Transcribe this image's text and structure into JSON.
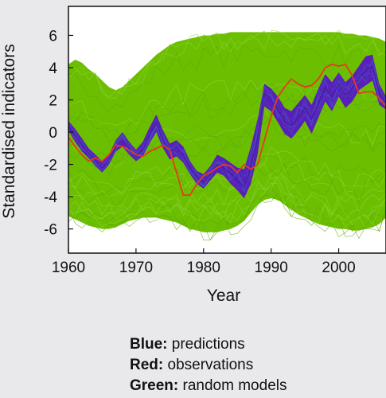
{
  "chart_data": {
    "type": "line",
    "xlabel": "Year",
    "ylabel": "Standardised indicators",
    "xlim": [
      1960,
      2007
    ],
    "ylim": [
      -7.5,
      7.8
    ],
    "xticks": [
      1960,
      1970,
      1980,
      1990,
      2000
    ],
    "yticks": [
      -6,
      -4,
      -2,
      0,
      2,
      4,
      6
    ],
    "x": [
      1960,
      1961,
      1962,
      1963,
      1964,
      1965,
      1966,
      1967,
      1968,
      1969,
      1970,
      1971,
      1972,
      1973,
      1974,
      1975,
      1976,
      1977,
      1978,
      1979,
      1980,
      1981,
      1982,
      1983,
      1984,
      1985,
      1986,
      1987,
      1988,
      1989,
      1990,
      1991,
      1992,
      1993,
      1994,
      1995,
      1996,
      1997,
      1998,
      1999,
      2000,
      2001,
      2002,
      2003,
      2004,
      2005,
      2006,
      2007
    ],
    "series": [
      {
        "name": "Green",
        "color": "#6cbf00",
        "band_upper": [
          4.2,
          4.5,
          4.3,
          3.9,
          3.6,
          3.2,
          2.8,
          2.6,
          2.8,
          3.2,
          3.6,
          4.0,
          4.4,
          4.8,
          5.1,
          5.4,
          5.6,
          5.7,
          5.8,
          5.9,
          6.0,
          6.0,
          6.1,
          6.1,
          6.2,
          6.2,
          6.2,
          6.2,
          6.2,
          6.2,
          6.2,
          6.2,
          6.2,
          6.2,
          6.2,
          6.2,
          6.2,
          6.2,
          6.2,
          6.2,
          6.2,
          6.1,
          6.1,
          6.0,
          6.0,
          5.9,
          5.8,
          5.6
        ],
        "band_lower": [
          -5.2,
          -5.4,
          -5.6,
          -5.8,
          -5.9,
          -6.0,
          -6.0,
          -5.9,
          -5.7,
          -5.5,
          -5.4,
          -5.3,
          -5.3,
          -5.3,
          -5.4,
          -5.5,
          -5.6,
          -5.8,
          -6.0,
          -6.1,
          -6.2,
          -6.2,
          -6.2,
          -6.1,
          -6.0,
          -5.8,
          -5.5,
          -5.0,
          -4.5,
          -4.2,
          -4.1,
          -4.2,
          -4.5,
          -4.8,
          -5.1,
          -5.3,
          -5.5,
          -5.7,
          -5.8,
          -5.9,
          -6.0,
          -6.0,
          -6.1,
          -6.1,
          -6.0,
          -5.9,
          -5.7,
          -5.3
        ]
      },
      {
        "name": "Blue",
        "color": "#5a1fb8",
        "values": [
          0.4,
          -0.2,
          -0.8,
          -1.3,
          -1.8,
          -2.2,
          -1.7,
          -0.9,
          -0.5,
          -1.0,
          -1.5,
          -1.1,
          -0.2,
          0.6,
          -0.5,
          -1.2,
          -1.0,
          -1.4,
          -2.2,
          -2.8,
          -3.1,
          -2.6,
          -2.0,
          -2.2,
          -2.6,
          -3.0,
          -3.4,
          -2.2,
          -0.3,
          2.4,
          2.0,
          1.4,
          0.7,
          0.4,
          0.9,
          1.5,
          0.8,
          1.8,
          2.8,
          2.2,
          3.0,
          2.3,
          2.7,
          3.4,
          3.8,
          4.1,
          2.4,
          1.8
        ],
        "band_upper": [
          0.7,
          0.2,
          -0.4,
          -1.0,
          -1.4,
          -1.8,
          -1.4,
          -0.5,
          0.0,
          -0.6,
          -1.1,
          -0.6,
          0.3,
          1.1,
          0.1,
          -0.7,
          -0.5,
          -0.9,
          -1.8,
          -2.4,
          -2.6,
          -2.1,
          -1.4,
          -1.6,
          -1.9,
          -2.2,
          -2.3,
          -0.9,
          0.8,
          3.0,
          2.7,
          2.2,
          1.5,
          1.3,
          1.8,
          2.3,
          1.7,
          2.7,
          3.6,
          3.1,
          3.7,
          3.1,
          3.5,
          4.1,
          4.7,
          4.8,
          3.0,
          2.2
        ],
        "band_lower": [
          0.1,
          -0.6,
          -1.2,
          -1.6,
          -2.1,
          -2.5,
          -2.0,
          -1.2,
          -0.9,
          -1.4,
          -1.8,
          -1.5,
          -0.7,
          0.0,
          -1.0,
          -1.7,
          -1.5,
          -1.9,
          -2.6,
          -3.2,
          -3.5,
          -3.0,
          -2.5,
          -2.7,
          -3.2,
          -3.6,
          -4.1,
          -3.2,
          -1.4,
          1.6,
          1.3,
          0.6,
          -0.1,
          -0.4,
          0.1,
          0.7,
          -0.1,
          0.9,
          1.9,
          1.3,
          2.2,
          1.5,
          1.9,
          2.6,
          2.9,
          3.2,
          1.7,
          1.4
        ]
      },
      {
        "name": "Red",
        "color": "#e8391c",
        "values": [
          -0.3,
          -0.9,
          -1.4,
          -1.8,
          -1.6,
          -1.8,
          -1.4,
          -0.8,
          -0.9,
          -1.1,
          -1.4,
          -1.5,
          -1.2,
          -1.0,
          -0.8,
          -1.1,
          -2.5,
          -3.9,
          -3.9,
          -3.2,
          -2.7,
          -2.5,
          -2.2,
          -2.0,
          -2.1,
          -2.5,
          -2.0,
          -2.3,
          -2.0,
          -0.5,
          1.0,
          2.2,
          2.8,
          3.3,
          3.0,
          2.8,
          2.9,
          3.3,
          4.0,
          4.2,
          4.1,
          4.2,
          3.5,
          2.4,
          2.5,
          2.5,
          2.1,
          1.6
        ]
      }
    ],
    "legend_placement": "bottom",
    "grid": false
  },
  "legend": {
    "blue_key": "Blue:",
    "blue_text": " predictions",
    "red_key": "Red:",
    "red_text": " observations",
    "green_key": "Green:",
    "green_text": " random models"
  }
}
